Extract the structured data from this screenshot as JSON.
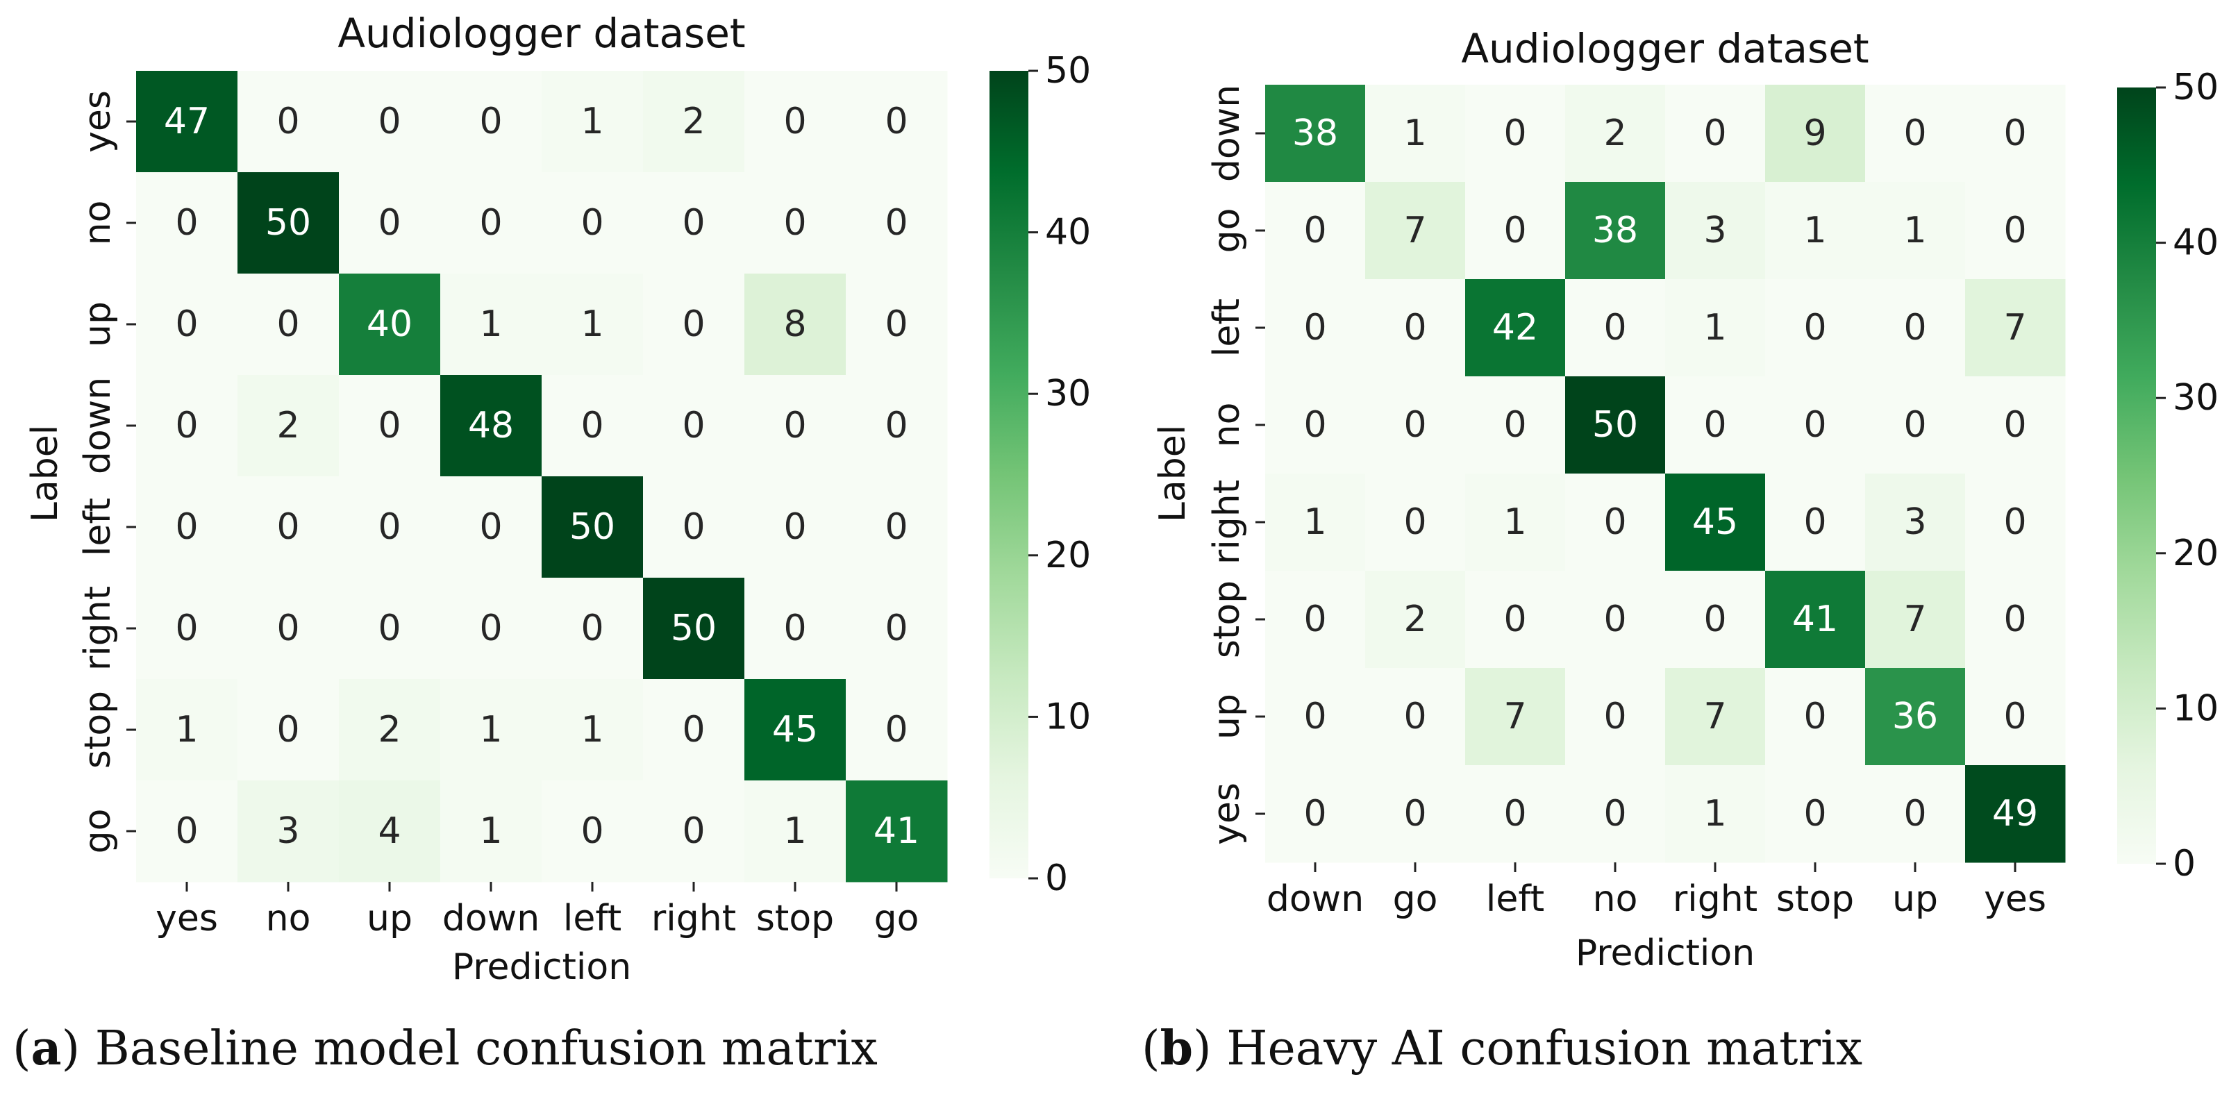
{
  "chart_data": [
    {
      "type": "heatmap",
      "title": "Audiologger dataset",
      "xlabel": "Prediction",
      "ylabel": "Label",
      "x_categories": [
        "yes",
        "no",
        "up",
        "down",
        "left",
        "right",
        "stop",
        "go"
      ],
      "y_categories": [
        "yes",
        "no",
        "up",
        "down",
        "left",
        "right",
        "stop",
        "go"
      ],
      "values": [
        [
          47,
          0,
          0,
          0,
          1,
          2,
          0,
          0
        ],
        [
          0,
          50,
          0,
          0,
          0,
          0,
          0,
          0
        ],
        [
          0,
          0,
          40,
          1,
          1,
          0,
          8,
          0
        ],
        [
          0,
          2,
          0,
          48,
          0,
          0,
          0,
          0
        ],
        [
          0,
          0,
          0,
          0,
          50,
          0,
          0,
          0
        ],
        [
          0,
          0,
          0,
          0,
          0,
          50,
          0,
          0
        ],
        [
          1,
          0,
          2,
          1,
          1,
          0,
          45,
          0
        ],
        [
          0,
          3,
          4,
          1,
          0,
          0,
          1,
          41
        ]
      ],
      "colorbar": {
        "min": 0,
        "max": 50,
        "ticks": [
          "0",
          "10",
          "20",
          "30",
          "40",
          "50"
        ],
        "colormap": "Greens"
      }
    },
    {
      "type": "heatmap",
      "title": "Audiologger dataset",
      "xlabel": "Prediction",
      "ylabel": "Label",
      "x_categories": [
        "down",
        "go",
        "left",
        "no",
        "right",
        "stop",
        "up",
        "yes"
      ],
      "y_categories": [
        "down",
        "go",
        "left",
        "no",
        "right",
        "stop",
        "up",
        "yes"
      ],
      "values": [
        [
          38,
          1,
          0,
          2,
          0,
          9,
          0,
          0
        ],
        [
          0,
          7,
          0,
          38,
          3,
          1,
          1,
          0
        ],
        [
          0,
          0,
          42,
          0,
          1,
          0,
          0,
          7
        ],
        [
          0,
          0,
          0,
          50,
          0,
          0,
          0,
          0
        ],
        [
          1,
          0,
          1,
          0,
          45,
          0,
          3,
          0
        ],
        [
          0,
          2,
          0,
          0,
          0,
          41,
          7,
          0
        ],
        [
          0,
          0,
          7,
          0,
          7,
          0,
          36,
          0
        ],
        [
          0,
          0,
          0,
          0,
          1,
          0,
          0,
          49
        ]
      ],
      "colorbar": {
        "min": 0,
        "max": 50,
        "ticks": [
          "0",
          "10",
          "20",
          "30",
          "40",
          "50"
        ],
        "colormap": "Greens"
      }
    }
  ],
  "captions": [
    {
      "label": "a",
      "text": " Baseline model confusion matrix"
    },
    {
      "label": "b",
      "text": " Heavy AI confusion matrix"
    }
  ]
}
